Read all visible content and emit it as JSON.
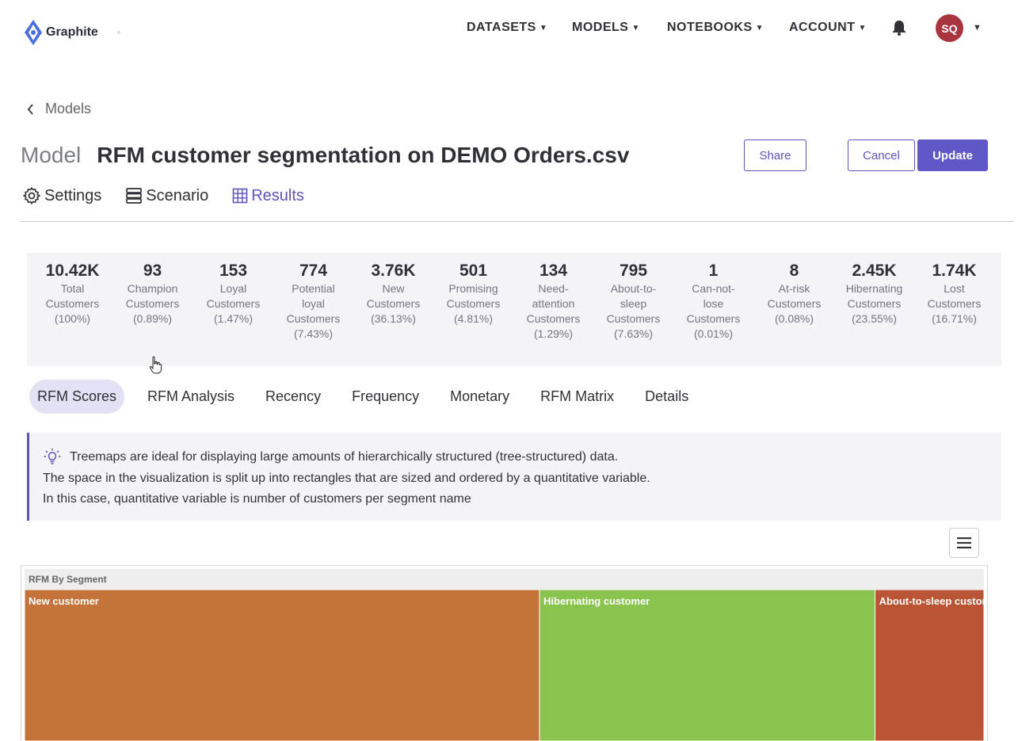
{
  "app": {
    "name": "Graphite"
  },
  "nav": [
    {
      "label": "DATASETS"
    },
    {
      "label": "MODELS"
    },
    {
      "label": "NOTEBOOKS"
    },
    {
      "label": "ACCOUNT"
    }
  ],
  "user": {
    "initials": "SQ"
  },
  "breadcrumb": {
    "label": "Models"
  },
  "page": {
    "prefix": "Model",
    "title": "RFM customer segmentation on DEMO Orders.csv"
  },
  "actions": {
    "share": "Share",
    "cancel": "Cancel",
    "update": "Update"
  },
  "tabs": [
    {
      "label": "Settings",
      "icon": "gear-icon"
    },
    {
      "label": "Scenario",
      "icon": "stack-icon"
    },
    {
      "label": "Results",
      "icon": "grid-icon",
      "active": true
    }
  ],
  "stats": [
    {
      "value": "10.42K",
      "label_lines": [
        "Total",
        "Customers"
      ],
      "pct": "(100%)"
    },
    {
      "value": "93",
      "label_lines": [
        "Champion",
        "Customers"
      ],
      "pct": "(0.89%)"
    },
    {
      "value": "153",
      "label_lines": [
        "Loyal",
        "Customers"
      ],
      "pct": "(1.47%)"
    },
    {
      "value": "774",
      "label_lines": [
        "Potential",
        "loyal",
        "Customers"
      ],
      "pct": "(7.43%)"
    },
    {
      "value": "3.76K",
      "label_lines": [
        "New",
        "Customers"
      ],
      "pct": "(36.13%)"
    },
    {
      "value": "501",
      "label_lines": [
        "Promising",
        "Customers"
      ],
      "pct": "(4.81%)"
    },
    {
      "value": "134",
      "label_lines": [
        "Need-",
        "attention",
        "Customers"
      ],
      "pct": "(1.29%)"
    },
    {
      "value": "795",
      "label_lines": [
        "About-to-",
        "sleep",
        "Customers"
      ],
      "pct": "(7.63%)"
    },
    {
      "value": "1",
      "label_lines": [
        "Can-not-",
        "lose",
        "Customers"
      ],
      "pct": "(0.01%)"
    },
    {
      "value": "8",
      "label_lines": [
        "At-risk",
        "Customers"
      ],
      "pct": "(0.08%)"
    },
    {
      "value": "2.45K",
      "label_lines": [
        "Hibernating",
        "Customers"
      ],
      "pct": "(23.55%)"
    },
    {
      "value": "1.74K",
      "label_lines": [
        "Lost",
        "Customers"
      ],
      "pct": "(16.71%)"
    }
  ],
  "subtabs": [
    {
      "label": "RFM Scores",
      "active": true
    },
    {
      "label": "RFM Analysis"
    },
    {
      "label": "Recency"
    },
    {
      "label": "Frequency"
    },
    {
      "label": "Monetary"
    },
    {
      "label": "RFM Matrix"
    },
    {
      "label": "Details"
    }
  ],
  "info": {
    "icon": "lightbulb-icon",
    "lines": [
      "Treemaps are ideal for displaying large amounts of hierarchically structured (tree-structured) data.",
      "The space in the visualization is split up into rectangles that are sized and ordered by a quantitative variable.",
      "In this case, quantitative variable is number of customers per segment name"
    ]
  },
  "chart_data": {
    "type": "treemap",
    "title": "RFM By Segment",
    "segments": [
      {
        "name": "New customer",
        "value": 3760,
        "color": "#c4743b"
      },
      {
        "name": "Hibernating customer",
        "value": 2450,
        "color": "#8bc34f"
      },
      {
        "name": "About-to-sleep customer",
        "value": 795,
        "color": "#b95535"
      }
    ]
  },
  "colors": {
    "accent": "#5b55b9",
    "avatar": "#a8343f"
  }
}
